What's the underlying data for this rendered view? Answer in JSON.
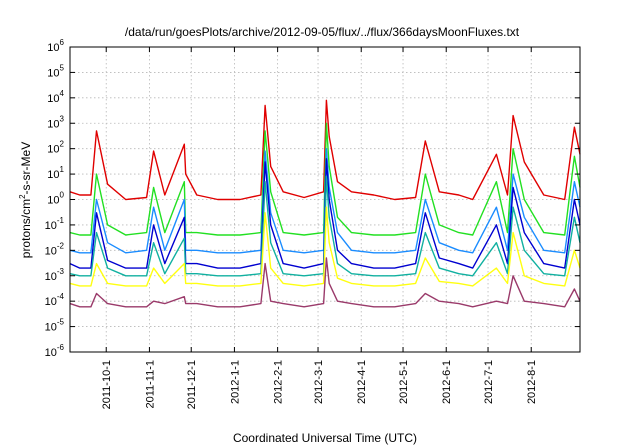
{
  "chart_data": {
    "type": "line",
    "title": "/data/run/goesPlots/archive/2012-09-05/flux/../flux/366daysMoonFluxes.txt",
    "xlabel": "Coordinated Universal Time (UTC)",
    "ylabel": "protons/cm2-s-sr-MeV",
    "ylabel_parts": [
      "protons/cm",
      "2",
      "-s-sr-MeV"
    ],
    "y_scale": "log",
    "ylim": [
      1e-06,
      1000000.0
    ],
    "y_ticks": [
      {
        "value": 1e-06,
        "base": "10",
        "exp": "-6"
      },
      {
        "value": 1e-05,
        "base": "10",
        "exp": "-5"
      },
      {
        "value": 0.0001,
        "base": "10",
        "exp": "-4"
      },
      {
        "value": 0.001,
        "base": "10",
        "exp": "-3"
      },
      {
        "value": 0.01,
        "base": "10",
        "exp": "-2"
      },
      {
        "value": 0.1,
        "base": "10",
        "exp": "-1"
      },
      {
        "value": 1.0,
        "base": "10",
        "exp": "0"
      },
      {
        "value": 10.0,
        "base": "10",
        "exp": "1"
      },
      {
        "value": 100.0,
        "base": "10",
        "exp": "2"
      },
      {
        "value": 1000.0,
        "base": "10",
        "exp": "3"
      },
      {
        "value": 10000.0,
        "base": "10",
        "exp": "4"
      },
      {
        "value": 100000.0,
        "base": "10",
        "exp": "5"
      },
      {
        "value": 1000000.0,
        "base": "10",
        "exp": "6"
      }
    ],
    "xlim": [
      "2011-09-05",
      "2012-09-05"
    ],
    "x_ticks": [
      "2011-10-1",
      "2011-11-1",
      "2011-12-1",
      "2012-1-1",
      "2012-2-1",
      "2012-3-1",
      "2012-4-1",
      "2012-5-1",
      "2012-6-1",
      "2012-7-1",
      "2012-8-1"
    ],
    "x_tick_dates": [
      "2011-10-01",
      "2011-11-01",
      "2011-12-01",
      "2012-01-01",
      "2012-02-01",
      "2012-03-01",
      "2012-04-01",
      "2012-05-01",
      "2012-06-01",
      "2012-07-01",
      "2012-08-01"
    ],
    "grid": true,
    "legend": "none",
    "series": [
      {
        "color": "#e00000",
        "x": [
          "2011-09-05",
          "2011-09-12",
          "2011-09-20",
          "2011-09-24",
          "2011-10-02",
          "2011-10-15",
          "2011-10-30",
          "2011-11-04",
          "2011-11-12",
          "2011-11-26",
          "2011-11-27",
          "2011-12-05",
          "2011-12-20",
          "2012-01-05",
          "2012-01-20",
          "2012-01-23",
          "2012-01-27",
          "2012-02-05",
          "2012-02-20",
          "2012-03-05",
          "2012-03-07",
          "2012-03-09",
          "2012-03-15",
          "2012-03-25",
          "2012-04-10",
          "2012-04-25",
          "2012-05-10",
          "2012-05-17",
          "2012-05-27",
          "2012-06-10",
          "2012-06-20",
          "2012-07-07",
          "2012-07-15",
          "2012-07-19",
          "2012-07-27",
          "2012-08-10",
          "2012-08-25",
          "2012-09-01",
          "2012-09-05"
        ],
        "y": [
          2,
          1.5,
          1.5,
          500,
          4,
          1,
          1.2,
          80,
          1.5,
          150,
          10,
          1.5,
          1,
          1,
          1.5,
          5000,
          20,
          2,
          1.2,
          2,
          8000,
          300,
          5,
          2,
          1.5,
          1,
          1.2,
          200,
          2,
          1.5,
          1,
          60,
          1.5,
          2000,
          30,
          1.5,
          1,
          700,
          60
        ]
      },
      {
        "color": "#22e022",
        "x": [
          "2011-09-05",
          "2011-09-12",
          "2011-09-20",
          "2011-09-24",
          "2011-10-02",
          "2011-10-15",
          "2011-10-30",
          "2011-11-04",
          "2011-11-12",
          "2011-11-26",
          "2011-11-27",
          "2011-12-05",
          "2011-12-20",
          "2012-01-05",
          "2012-01-20",
          "2012-01-23",
          "2012-01-27",
          "2012-02-05",
          "2012-02-20",
          "2012-03-05",
          "2012-03-07",
          "2012-03-09",
          "2012-03-15",
          "2012-03-25",
          "2012-04-10",
          "2012-04-25",
          "2012-05-10",
          "2012-05-17",
          "2012-05-27",
          "2012-06-10",
          "2012-06-20",
          "2012-07-07",
          "2012-07-15",
          "2012-07-19",
          "2012-07-27",
          "2012-08-10",
          "2012-08-25",
          "2012-09-01",
          "2012-09-05"
        ],
        "y": [
          0.05,
          0.04,
          0.04,
          10,
          0.1,
          0.04,
          0.05,
          3,
          0.05,
          5,
          0.05,
          0.05,
          0.04,
          0.04,
          0.05,
          500,
          2,
          0.05,
          0.04,
          0.05,
          1000,
          20,
          0.2,
          0.05,
          0.04,
          0.04,
          0.05,
          10,
          0.1,
          0.05,
          0.04,
          5,
          0.05,
          100,
          1,
          0.05,
          0.04,
          50,
          3
        ]
      },
      {
        "color": "#1a8cff",
        "x": [
          "2011-09-05",
          "2011-09-12",
          "2011-09-20",
          "2011-09-24",
          "2011-10-02",
          "2011-10-15",
          "2011-10-30",
          "2011-11-04",
          "2011-11-12",
          "2011-11-26",
          "2011-11-27",
          "2011-12-05",
          "2011-12-20",
          "2012-01-05",
          "2012-01-20",
          "2012-01-23",
          "2012-01-27",
          "2012-02-05",
          "2012-02-20",
          "2012-03-05",
          "2012-03-07",
          "2012-03-09",
          "2012-03-15",
          "2012-03-25",
          "2012-04-10",
          "2012-04-25",
          "2012-05-10",
          "2012-05-17",
          "2012-05-27",
          "2012-06-10",
          "2012-06-20",
          "2012-07-07",
          "2012-07-15",
          "2012-07-19",
          "2012-07-27",
          "2012-08-10",
          "2012-08-25",
          "2012-09-01",
          "2012-09-05"
        ],
        "y": [
          0.01,
          0.008,
          0.008,
          1,
          0.02,
          0.008,
          0.01,
          0.5,
          0.01,
          1,
          0.01,
          0.01,
          0.008,
          0.008,
          0.01,
          80,
          0.3,
          0.01,
          0.008,
          0.01,
          100,
          3,
          0.05,
          0.01,
          0.008,
          0.008,
          0.01,
          1,
          0.02,
          0.01,
          0.008,
          0.5,
          0.01,
          10,
          0.2,
          0.01,
          0.008,
          5,
          0.5
        ]
      },
      {
        "color": "#0000d0",
        "x": [
          "2011-09-05",
          "2011-09-12",
          "2011-09-20",
          "2011-09-24",
          "2011-10-02",
          "2011-10-15",
          "2011-10-30",
          "2011-11-04",
          "2011-11-12",
          "2011-11-26",
          "2011-11-27",
          "2011-12-05",
          "2011-12-20",
          "2012-01-05",
          "2012-01-20",
          "2012-01-23",
          "2012-01-27",
          "2012-02-05",
          "2012-02-20",
          "2012-03-05",
          "2012-03-07",
          "2012-03-09",
          "2012-03-15",
          "2012-03-25",
          "2012-04-10",
          "2012-04-25",
          "2012-05-10",
          "2012-05-17",
          "2012-05-27",
          "2012-06-10",
          "2012-06-20",
          "2012-07-07",
          "2012-07-15",
          "2012-07-19",
          "2012-07-27",
          "2012-08-10",
          "2012-08-25",
          "2012-09-01",
          "2012-09-05"
        ],
        "y": [
          0.003,
          0.002,
          0.002,
          0.3,
          0.004,
          0.002,
          0.002,
          0.1,
          0.003,
          0.2,
          0.003,
          0.003,
          0.002,
          0.002,
          0.003,
          30,
          0.1,
          0.003,
          0.002,
          0.003,
          40,
          1,
          0.01,
          0.003,
          0.002,
          0.002,
          0.003,
          0.3,
          0.005,
          0.003,
          0.002,
          0.1,
          0.003,
          3,
          0.05,
          0.003,
          0.002,
          1,
          0.1
        ]
      },
      {
        "color": "#10b0a0",
        "x": [
          "2011-09-05",
          "2011-09-12",
          "2011-09-20",
          "2011-09-24",
          "2011-10-02",
          "2011-10-15",
          "2011-10-30",
          "2011-11-04",
          "2011-11-12",
          "2011-11-26",
          "2011-11-27",
          "2011-12-05",
          "2011-12-20",
          "2012-01-05",
          "2012-01-20",
          "2012-01-23",
          "2012-01-27",
          "2012-02-05",
          "2012-02-20",
          "2012-03-05",
          "2012-03-07",
          "2012-03-09",
          "2012-03-15",
          "2012-03-25",
          "2012-04-10",
          "2012-04-25",
          "2012-05-10",
          "2012-05-17",
          "2012-05-27",
          "2012-06-10",
          "2012-06-20",
          "2012-07-07",
          "2012-07-15",
          "2012-07-19",
          "2012-07-27",
          "2012-08-10",
          "2012-08-25",
          "2012-09-01",
          "2012-09-05"
        ],
        "y": [
          0.0012,
          0.001,
          0.001,
          0.05,
          0.002,
          0.001,
          0.001,
          0.02,
          0.0012,
          0.03,
          0.0012,
          0.0012,
          0.001,
          0.001,
          0.0012,
          5,
          0.02,
          0.0012,
          0.001,
          0.0012,
          8,
          0.2,
          0.003,
          0.0012,
          0.001,
          0.001,
          0.0012,
          0.05,
          0.002,
          0.0012,
          0.001,
          0.02,
          0.0012,
          0.5,
          0.01,
          0.0012,
          0.001,
          0.2,
          0.02
        ]
      },
      {
        "color": "#ffff10",
        "x": [
          "2011-09-05",
          "2011-09-12",
          "2011-09-20",
          "2011-09-24",
          "2011-10-02",
          "2011-10-15",
          "2011-10-30",
          "2011-11-04",
          "2011-11-12",
          "2011-11-26",
          "2011-11-27",
          "2011-12-05",
          "2011-12-20",
          "2012-01-05",
          "2012-01-20",
          "2012-01-23",
          "2012-01-27",
          "2012-02-05",
          "2012-02-20",
          "2012-03-05",
          "2012-03-07",
          "2012-03-09",
          "2012-03-15",
          "2012-03-25",
          "2012-04-10",
          "2012-04-25",
          "2012-05-10",
          "2012-05-17",
          "2012-05-27",
          "2012-06-10",
          "2012-06-20",
          "2012-07-07",
          "2012-07-15",
          "2012-07-19",
          "2012-07-27",
          "2012-08-10",
          "2012-08-25",
          "2012-09-01",
          "2012-09-05"
        ],
        "y": [
          0.0005,
          0.0004,
          0.0004,
          0.003,
          0.0005,
          0.0004,
          0.0004,
          0.002,
          0.0005,
          0.003,
          0.0005,
          0.0005,
          0.0004,
          0.0004,
          0.0005,
          0.3,
          0.002,
          0.0005,
          0.0004,
          0.0005,
          0.5,
          0.02,
          0.0008,
          0.0005,
          0.0004,
          0.0004,
          0.0005,
          0.005,
          0.0006,
          0.0005,
          0.0004,
          0.002,
          0.0005,
          0.05,
          0.001,
          0.0005,
          0.0004,
          0.01,
          0.002
        ]
      },
      {
        "color": "#9a3a6a",
        "x": [
          "2011-09-05",
          "2011-09-12",
          "2011-09-20",
          "2011-09-24",
          "2011-10-02",
          "2011-10-15",
          "2011-10-30",
          "2011-11-04",
          "2011-11-12",
          "2011-11-26",
          "2011-11-27",
          "2011-12-05",
          "2011-12-20",
          "2012-01-05",
          "2012-01-20",
          "2012-01-23",
          "2012-01-27",
          "2012-02-05",
          "2012-02-20",
          "2012-03-05",
          "2012-03-07",
          "2012-03-09",
          "2012-03-15",
          "2012-03-25",
          "2012-04-10",
          "2012-04-25",
          "2012-05-10",
          "2012-05-17",
          "2012-05-27",
          "2012-06-10",
          "2012-06-20",
          "2012-07-07",
          "2012-07-15",
          "2012-07-19",
          "2012-07-27",
          "2012-08-10",
          "2012-08-25",
          "2012-09-01",
          "2012-09-05"
        ],
        "y": [
          8e-05,
          6e-05,
          6e-05,
          0.0002,
          8e-05,
          6e-05,
          6e-05,
          0.0001,
          8e-05,
          0.00015,
          8e-05,
          8e-05,
          6e-05,
          6e-05,
          8e-05,
          0.003,
          0.0001,
          8e-05,
          6e-05,
          8e-05,
          0.005,
          0.0005,
          0.0001,
          8e-05,
          6e-05,
          6e-05,
          8e-05,
          0.0002,
          0.0001,
          8e-05,
          6e-05,
          0.0001,
          8e-05,
          0.001,
          0.0001,
          8e-05,
          6e-05,
          0.0003,
          0.0001
        ]
      }
    ]
  }
}
